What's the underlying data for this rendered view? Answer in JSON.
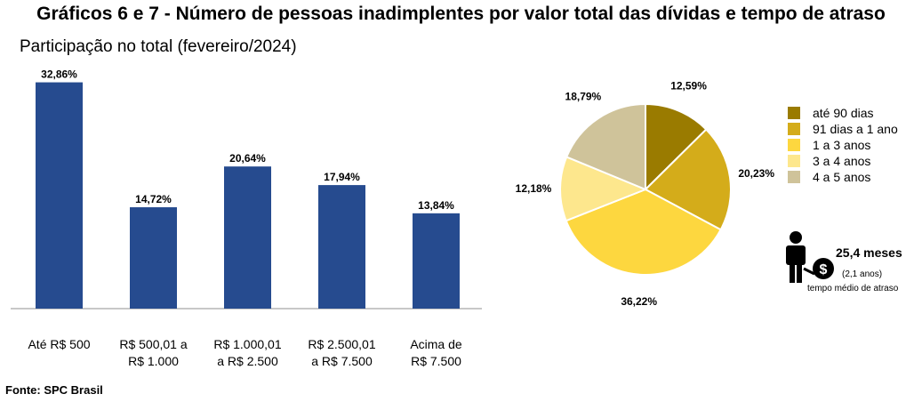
{
  "title": "Gráficos 6 e 7 - Número de pessoas inadimplentes por valor total das dívidas e tempo de atraso",
  "subtitle": "Participação no total (fevereiro/2024)",
  "source": "Fonte: SPC Brasil",
  "chart_data": [
    {
      "type": "bar",
      "categories": [
        [
          "Até R$ 500"
        ],
        [
          "R$ 500,01 a",
          "R$ 1.000"
        ],
        [
          "R$ 1.000,01",
          "a R$ 2.500"
        ],
        [
          "R$ 2.500,01",
          "a R$ 7.500"
        ],
        [
          "Acima de",
          "R$ 7.500"
        ]
      ],
      "values": [
        32.86,
        14.72,
        20.64,
        17.94,
        13.84
      ],
      "value_labels": [
        "32,86%",
        "14,72%",
        "20,64%",
        "17,94%",
        "13,84%"
      ],
      "ylim": [
        0,
        35
      ],
      "color": "#264b8f",
      "grid": false
    },
    {
      "type": "pie",
      "labels": [
        "até 90 dias",
        "91 dias a 1 ano",
        "1 a 3 anos",
        "3 a 4 anos",
        "4 a 5 anos"
      ],
      "values": [
        12.59,
        20.23,
        36.22,
        12.18,
        18.79
      ],
      "value_labels": [
        "12,59%",
        "20,23%",
        "36,22%",
        "12,18%",
        "18,79%"
      ],
      "colors": [
        "#9a7b00",
        "#d4ac1a",
        "#fdd73f",
        "#fde78d",
        "#cfc39a"
      ],
      "legend_position": "right"
    }
  ],
  "info": {
    "value": "25,4 meses",
    "years": "(2,1 anos)",
    "caption": "tempo médio de atraso"
  }
}
